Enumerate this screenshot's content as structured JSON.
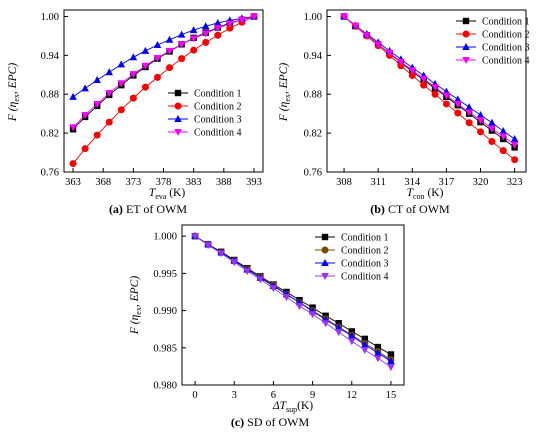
{
  "chart_data": [
    {
      "type": "line",
      "panel_letter": "(a)",
      "caption": "ET of OWM",
      "ylabel_main": "F",
      "ylabel_args": "(η",
      "ylabel_sub": "ex",
      "ylabel_rest": ", EPC)",
      "xlabel_main": "T",
      "xlabel_sub": "eva",
      "xlabel_unit": " (K)",
      "x_ticks": [
        363,
        368,
        373,
        378,
        383,
        388,
        393
      ],
      "y_ticks": [
        0.76,
        0.82,
        0.88,
        0.94,
        1.0
      ],
      "y_tick_labels": [
        "0.76",
        "0.82",
        "0.88",
        "0.94",
        "1.00"
      ],
      "xlim": [
        361.5,
        394.5
      ],
      "ylim": [
        0.76,
        1.01
      ],
      "legend_position": "lower-right",
      "x": [
        363,
        365,
        367,
        369,
        371,
        373,
        375,
        377,
        379,
        381,
        383,
        385,
        387,
        389,
        391,
        393
      ],
      "series": [
        {
          "name": "Condition 1",
          "color": "#000000",
          "marker": "square",
          "values": [
            0.826,
            0.845,
            0.862,
            0.879,
            0.894,
            0.909,
            0.922,
            0.935,
            0.946,
            0.957,
            0.967,
            0.975,
            0.983,
            0.99,
            0.995,
            1.0
          ]
        },
        {
          "name": "Condition 2",
          "color": "#ff0000",
          "marker": "circle",
          "values": [
            0.773,
            0.796,
            0.817,
            0.837,
            0.856,
            0.874,
            0.891,
            0.906,
            0.921,
            0.935,
            0.948,
            0.96,
            0.971,
            0.982,
            0.991,
            1.0
          ]
        },
        {
          "name": "Condition 3",
          "color": "#0000ff",
          "marker": "triangle-up",
          "values": [
            0.876,
            0.889,
            0.902,
            0.914,
            0.926,
            0.937,
            0.947,
            0.956,
            0.964,
            0.972,
            0.979,
            0.985,
            0.99,
            0.994,
            0.997,
            1.0
          ]
        },
        {
          "name": "Condition 4",
          "color": "#ff00ff",
          "marker": "triangle-down",
          "values": [
            0.829,
            0.848,
            0.865,
            0.882,
            0.897,
            0.911,
            0.924,
            0.936,
            0.947,
            0.957,
            0.966,
            0.974,
            0.982,
            0.989,
            0.995,
            1.0
          ]
        }
      ]
    },
    {
      "type": "line",
      "panel_letter": "(b)",
      "caption": "CT of OWM",
      "ylabel_main": "F",
      "ylabel_args": "(η",
      "ylabel_sub": "ex",
      "ylabel_rest": ", EPC)",
      "xlabel_main": "T",
      "xlabel_sub": "con",
      "xlabel_unit": " (K)",
      "x_ticks": [
        308,
        311,
        314,
        317,
        320,
        323
      ],
      "y_ticks": [
        0.76,
        0.82,
        0.88,
        0.94,
        1.0
      ],
      "y_tick_labels": [
        "0.76",
        "0.82",
        "0.88",
        "0.94",
        "1.00"
      ],
      "xlim": [
        306.5,
        324
      ],
      "ylim": [
        0.76,
        1.01
      ],
      "legend_position": "top-right",
      "x": [
        308,
        309,
        310,
        311,
        312,
        313,
        314,
        315,
        316,
        317,
        318,
        319,
        320,
        321,
        322,
        323
      ],
      "series": [
        {
          "name": "Condition 1",
          "color": "#000000",
          "marker": "square",
          "values": [
            1.0,
            0.985,
            0.971,
            0.957,
            0.943,
            0.929,
            0.915,
            0.902,
            0.889,
            0.876,
            0.863,
            0.85,
            0.837,
            0.824,
            0.811,
            0.798
          ]
        },
        {
          "name": "Condition 2",
          "color": "#ff0000",
          "marker": "circle",
          "values": [
            1.0,
            0.985,
            0.97,
            0.955,
            0.94,
            0.924,
            0.909,
            0.894,
            0.88,
            0.865,
            0.851,
            0.836,
            0.822,
            0.807,
            0.793,
            0.779
          ]
        },
        {
          "name": "Condition 3",
          "color": "#0000ff",
          "marker": "triangle-up",
          "values": [
            1.0,
            0.986,
            0.973,
            0.96,
            0.947,
            0.934,
            0.921,
            0.909,
            0.896,
            0.884,
            0.872,
            0.86,
            0.848,
            0.836,
            0.823,
            0.811
          ]
        },
        {
          "name": "Condition 4",
          "color": "#ff00ff",
          "marker": "triangle-down",
          "values": [
            1.0,
            0.986,
            0.971,
            0.957,
            0.944,
            0.93,
            0.917,
            0.904,
            0.891,
            0.878,
            0.865,
            0.852,
            0.84,
            0.827,
            0.815,
            0.802
          ]
        }
      ]
    },
    {
      "type": "line",
      "panel_letter": "(c)",
      "caption": "SD of OWM",
      "ylabel_main": "F",
      "ylabel_args": "(η",
      "ylabel_sub": "ex",
      "ylabel_rest": ", EPC)",
      "xlabel_main": "ΔT",
      "xlabel_sub": "sup",
      "xlabel_unit": "(K)",
      "x_ticks": [
        0,
        3,
        6,
        9,
        12,
        15
      ],
      "y_ticks": [
        0.98,
        0.985,
        0.99,
        0.995,
        1.0
      ],
      "y_tick_labels": [
        "0.980",
        "0.985",
        "0.990",
        "0.995",
        "1.000"
      ],
      "xlim": [
        -1,
        16
      ],
      "ylim": [
        0.98,
        1.0015
      ],
      "legend_position": "top-right",
      "x": [
        0,
        1,
        2,
        3,
        4,
        5,
        6,
        7,
        8,
        9,
        10,
        11,
        12,
        13,
        14,
        15
      ],
      "series": [
        {
          "name": "Condition 1",
          "color": "#000000",
          "marker": "square",
          "values": [
            1.0,
            0.9989,
            0.9979,
            0.9968,
            0.9957,
            0.9946,
            0.9935,
            0.9925,
            0.9914,
            0.9904,
            0.9893,
            0.9883,
            0.9872,
            0.9862,
            0.9851,
            0.9841
          ]
        },
        {
          "name": "Condition 2",
          "color": "#7a4b00",
          "marker": "circle",
          "values": [
            1.0,
            0.9989,
            0.9978,
            0.9967,
            0.9956,
            0.9945,
            0.9934,
            0.9922,
            0.9911,
            0.99,
            0.9889,
            0.9878,
            0.9867,
            0.9856,
            0.9845,
            0.9834
          ]
        },
        {
          "name": "Condition 3",
          "color": "#0000ff",
          "marker": "triangle-up",
          "values": [
            1.0,
            0.9989,
            0.9978,
            0.9967,
            0.9955,
            0.9944,
            0.9933,
            0.9922,
            0.9911,
            0.9899,
            0.9888,
            0.9877,
            0.9866,
            0.9854,
            0.9843,
            0.9832
          ]
        },
        {
          "name": "Condition 4",
          "color": "#9933ff",
          "marker": "triangle-down",
          "values": [
            1.0,
            0.9988,
            0.9977,
            0.9965,
            0.9953,
            0.9942,
            0.993,
            0.9918,
            0.9906,
            0.9895,
            0.9883,
            0.9871,
            0.9859,
            0.9847,
            0.9836,
            0.9824
          ]
        }
      ]
    }
  ]
}
